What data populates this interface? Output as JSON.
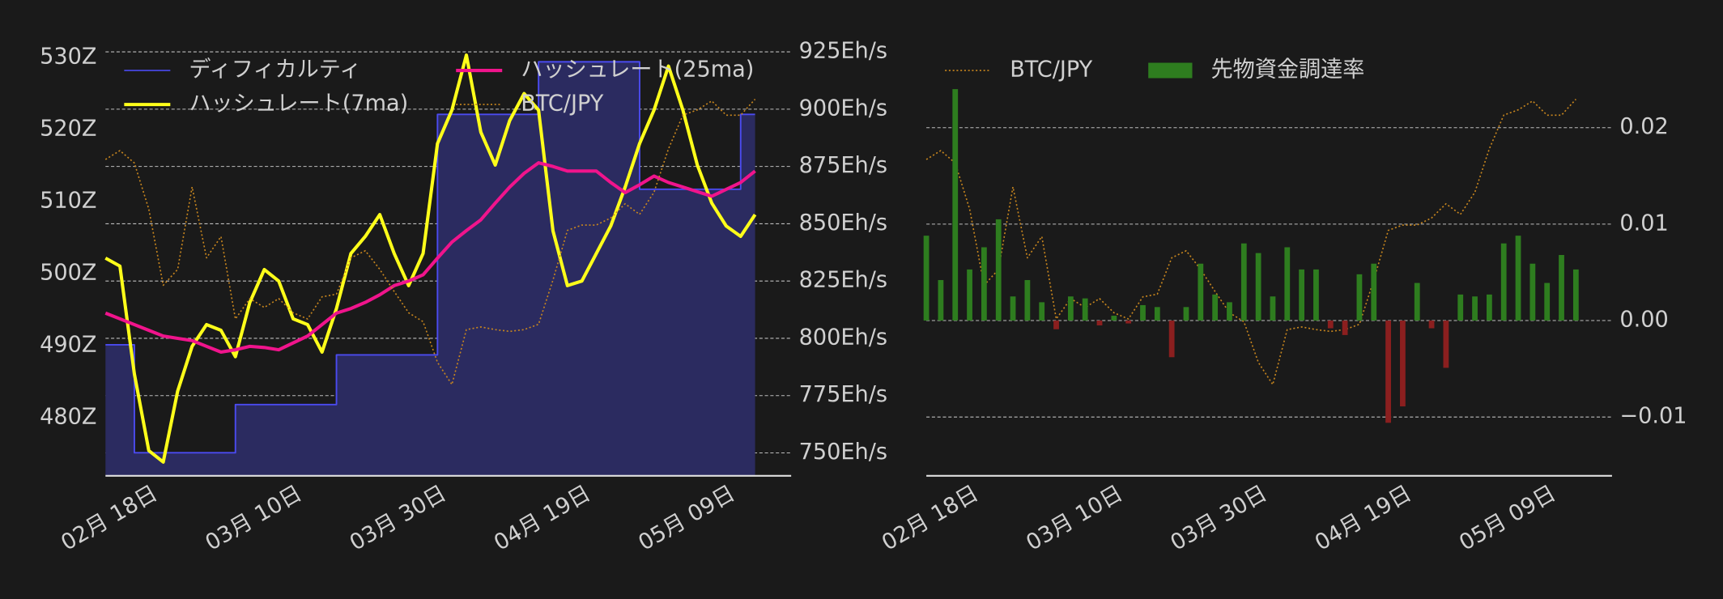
{
  "chart_data": [
    {
      "type": "line",
      "x": [
        "02-11",
        "02-13",
        "02-15",
        "02-17",
        "02-19",
        "02-21",
        "02-23",
        "02-25",
        "02-27",
        "03-01",
        "03-03",
        "03-05",
        "03-07",
        "03-09",
        "03-11",
        "03-13",
        "03-15",
        "03-17",
        "03-19",
        "03-21",
        "03-23",
        "03-25",
        "03-27",
        "03-29",
        "03-31",
        "04-02",
        "04-04",
        "04-06",
        "04-08",
        "04-10",
        "04-12",
        "04-14",
        "04-16",
        "04-18",
        "04-20",
        "04-22",
        "04-24",
        "04-26",
        "04-28",
        "04-30",
        "05-02",
        "05-04",
        "05-06",
        "05-08",
        "05-10",
        "05-12"
      ],
      "xlim": [
        "02-11",
        "05-17"
      ],
      "xticks": [
        {
          "value": "02-18",
          "label": "02月 18日"
        },
        {
          "value": "03-10",
          "label": "03月 10日"
        },
        {
          "value": "03-30",
          "label": "03月 30日"
        },
        {
          "value": "04-19",
          "label": "04月 19日"
        },
        {
          "value": "05-09",
          "label": "05月 09日"
        }
      ],
      "ylim": [
        471.9,
        531.1
      ],
      "yticks": [
        {
          "value": 480,
          "label": "480Z"
        },
        {
          "value": 490,
          "label": "490Z"
        },
        {
          "value": 500,
          "label": "500Z"
        },
        {
          "value": 510,
          "label": "510Z"
        },
        {
          "value": 520,
          "label": "520Z"
        },
        {
          "value": 530,
          "label": "530Z"
        }
      ],
      "yaxis_side": "left",
      "y2lim": [
        740,
        926
      ],
      "y2ticks": [
        {
          "value": 750,
          "label": "750Eh/s"
        },
        {
          "value": 775,
          "label": "775Eh/s"
        },
        {
          "value": 800,
          "label": "800Eh/s"
        },
        {
          "value": 825,
          "label": "825Eh/s"
        },
        {
          "value": 850,
          "label": "850Eh/s"
        },
        {
          "value": 875,
          "label": "875Eh/s"
        },
        {
          "value": 900,
          "label": "900Eh/s"
        },
        {
          "value": 925,
          "label": "925Eh/s"
        }
      ],
      "y3lim": [
        10630000,
        15440000
      ],
      "grid": "y2",
      "legend_columns": 2,
      "series": [
        {
          "name": "ディフィカルティ",
          "type": "step",
          "axis": "y",
          "color": "#4b4bf0",
          "fill_color": "#2b2b60",
          "values": [
            490.1,
            490.1,
            475.1,
            475.1,
            475.1,
            475.1,
            475.1,
            475.1,
            475.1,
            481.8,
            481.8,
            481.8,
            481.8,
            481.8,
            481.8,
            481.8,
            488.7,
            488.7,
            488.7,
            488.7,
            488.7,
            488.7,
            488.7,
            522.1,
            522.1,
            522.1,
            522.1,
            522.1,
            522.1,
            522.1,
            529.4,
            529.4,
            529.4,
            529.4,
            529.4,
            529.4,
            529.4,
            511.7,
            511.7,
            511.7,
            511.7,
            511.7,
            511.7,
            511.7,
            522.1,
            522.1
          ]
        },
        {
          "name": "ハッシュレート(7ma)",
          "type": "line",
          "axis": "y2",
          "color": "#ffff1a",
          "values": [
            835,
            831.5,
            784.5,
            751,
            746,
            777,
            796.5,
            806,
            803.5,
            792,
            815.7,
            830,
            825,
            808.5,
            806,
            794,
            813,
            837,
            844.5,
            854,
            837,
            823,
            837,
            885,
            899.6,
            923.6,
            890,
            875.6,
            895,
            906.8,
            899.6,
            846.9,
            823,
            825,
            837,
            849,
            866,
            885,
            899.6,
            918.8,
            899.6,
            875.6,
            859,
            849,
            844.5,
            854
          ]
        },
        {
          "name": "ハッシュレート(25ma)",
          "type": "line",
          "axis": "y2",
          "color": "#f0148c",
          "values": [
            811,
            808.5,
            806,
            803.5,
            801,
            800,
            799,
            796.5,
            794,
            795,
            796.5,
            796,
            795,
            798,
            801,
            806,
            811,
            813,
            815.7,
            819,
            823,
            825,
            827.7,
            835,
            842,
            847,
            851.7,
            859,
            866,
            872,
            876.6,
            875,
            873,
            873,
            873,
            868,
            863.6,
            867,
            870.8,
            868,
            866,
            864,
            862,
            865,
            868,
            873
          ]
        },
        {
          "name": "BTC/JPY",
          "type": "dotted",
          "axis": "y3",
          "color": "#c8861e",
          "values": [
            14200000,
            14300000,
            14160000,
            13640000,
            12780000,
            12960000,
            13890000,
            13090000,
            13330000,
            12400000,
            12630000,
            12530000,
            12630000,
            12470000,
            12400000,
            12650000,
            12680000,
            13090000,
            13170000,
            12960000,
            12710000,
            12470000,
            12370000,
            11910000,
            11660000,
            12280000,
            12310000,
            12280000,
            12260000,
            12280000,
            12340000,
            12840000,
            13400000,
            13460000,
            13460000,
            13540000,
            13700000,
            13580000,
            13830000,
            14320000,
            14700000,
            14760000,
            14860000,
            14700000,
            14700000,
            14880000
          ]
        }
      ]
    },
    {
      "type": "bar",
      "x": [
        "02-11",
        "02-13",
        "02-15",
        "02-17",
        "02-19",
        "02-21",
        "02-23",
        "02-25",
        "02-27",
        "03-01",
        "03-03",
        "03-05",
        "03-07",
        "03-09",
        "03-11",
        "03-13",
        "03-15",
        "03-17",
        "03-19",
        "03-21",
        "03-23",
        "03-25",
        "03-27",
        "03-29",
        "03-31",
        "04-02",
        "04-04",
        "04-06",
        "04-08",
        "04-10",
        "04-12",
        "04-14",
        "04-16",
        "04-18",
        "04-20",
        "04-22",
        "04-24",
        "04-26",
        "04-28",
        "04-30",
        "05-02",
        "05-04",
        "05-06",
        "05-08",
        "05-10",
        "05-12"
      ],
      "xlim": [
        "02-11",
        "05-17"
      ],
      "xticks": [
        {
          "value": "02-18",
          "label": "02月 18日"
        },
        {
          "value": "03-10",
          "label": "03月 10日"
        },
        {
          "value": "03-30",
          "label": "03月 30日"
        },
        {
          "value": "04-19",
          "label": "04月 19日"
        },
        {
          "value": "05-09",
          "label": "05月 09日"
        }
      ],
      "ylim": [
        -0.0161,
        0.0281
      ],
      "yticks": [
        {
          "value": -0.01,
          "label": "−0.01"
        },
        {
          "value": 0,
          "label": "0.00"
        },
        0.01,
        0.02
      ],
      "yaxis_side": "right",
      "y3lim": [
        10630000,
        15440000
      ],
      "grid": "y",
      "legend_columns": 2,
      "series": [
        {
          "name": "BTC/JPY",
          "type": "dotted",
          "axis": "y3",
          "color": "#c8861e",
          "values": [
            14200000,
            14300000,
            14160000,
            13640000,
            12780000,
            12960000,
            13890000,
            13090000,
            13330000,
            12400000,
            12630000,
            12530000,
            12630000,
            12470000,
            12400000,
            12650000,
            12680000,
            13090000,
            13170000,
            12960000,
            12710000,
            12470000,
            12370000,
            11910000,
            11660000,
            12280000,
            12310000,
            12280000,
            12260000,
            12280000,
            12340000,
            12840000,
            13400000,
            13460000,
            13460000,
            13540000,
            13700000,
            13580000,
            13830000,
            14320000,
            14700000,
            14760000,
            14860000,
            14700000,
            14700000,
            14880000
          ]
        },
        {
          "name": "先物資金調達率",
          "type": "bar",
          "axis": "y",
          "color": "#2e7d1f",
          "negative_color": "#8b1f1f",
          "values": [
            0.0088,
            0.0042,
            0.024,
            0.0053,
            0.0076,
            0.0105,
            0.0025,
            0.0042,
            0.0019,
            -0.0009,
            0.0025,
            0.0023,
            -0.0005,
            0.0005,
            -0.0003,
            0.0016,
            0.0014,
            -0.0038,
            0.0014,
            0.0059,
            0.0027,
            0.0019,
            0.008,
            0.007,
            0.0025,
            0.0076,
            0.0053,
            0.0053,
            -0.0008,
            -0.0015,
            0.0048,
            0.0059,
            -0.0106,
            -0.0089,
            0.0039,
            -0.0008,
            -0.0049,
            0.0027,
            0.0025,
            0.0027,
            0.008,
            0.0088,
            0.0059,
            0.0039,
            0.0068,
            0.0053
          ]
        }
      ]
    }
  ]
}
